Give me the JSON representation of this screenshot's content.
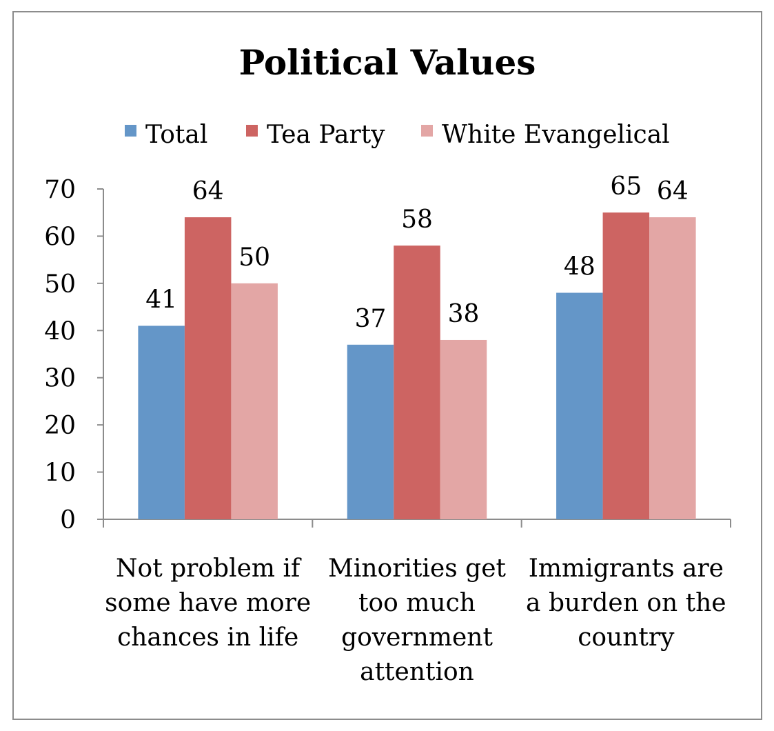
{
  "chart_data": {
    "type": "bar",
    "title": "Political Values",
    "categories": [
      [
        "Not problem if",
        "some have more",
        "chances in life"
      ],
      [
        "Minorities get",
        "too much",
        "government",
        "attention"
      ],
      [
        "Immigrants are",
        "a burden on the",
        "country"
      ]
    ],
    "series": [
      {
        "name": "Total",
        "color": "#6496c8",
        "values": [
          41,
          37,
          48
        ]
      },
      {
        "name": "Tea Party",
        "color": "#cd6462",
        "values": [
          64,
          58,
          65
        ]
      },
      {
        "name": "White Evangelical",
        "color": "#e3a6a5",
        "values": [
          50,
          38,
          64
        ]
      }
    ],
    "ylim": [
      0,
      70
    ],
    "yticks": [
      0,
      10,
      20,
      30,
      40,
      50,
      60,
      70
    ],
    "xlabel": "",
    "ylabel": "",
    "grid": false,
    "legend": "top-center"
  }
}
